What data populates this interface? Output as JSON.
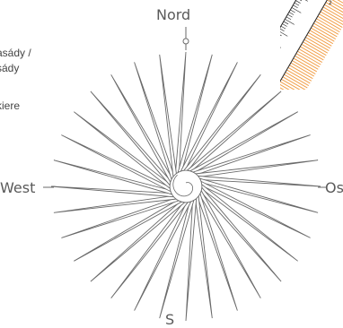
{
  "side_text": [
    "/",
    "asády /",
    "sády",
    "kiere"
  ],
  "directions": {
    "north": "Nord",
    "west": "West",
    "east": "Os",
    "south": "S"
  },
  "ruler_mark": "2",
  "rose": {
    "spikes": 32
  },
  "colors": {
    "line": "#6a6a6a",
    "ruler": "#f2a04a",
    "ruler_line": "#222222"
  }
}
